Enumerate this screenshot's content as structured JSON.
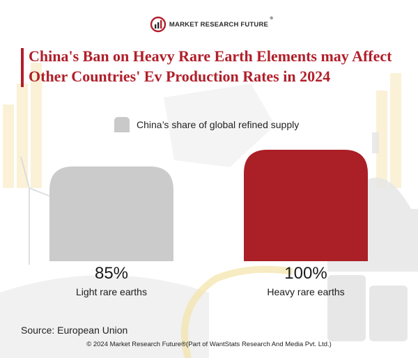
{
  "brand": {
    "name": "MARKET RESEARCH FUTURE",
    "reg_mark": "®",
    "accent_color": "#b11f2a"
  },
  "title": "China's Ban on Heavy Rare Earth Elements may Affect Other Countries' Ev Production Rates in 2024",
  "chart_data": {
    "type": "bar",
    "categories": [
      "Light rare earths",
      "Heavy rare earths"
    ],
    "series": [
      {
        "name": "China’s share of global refined supply",
        "values": [
          85,
          100
        ],
        "value_labels": [
          "85%",
          "100%"
        ],
        "colors": [
          "#cbcbcb",
          "#ab1f27"
        ]
      }
    ],
    "ylim": [
      0,
      100
    ],
    "grid": false,
    "legend": "top-center",
    "title": "",
    "xlabel": "",
    "ylabel": ""
  },
  "source": "Source: European Union",
  "footer": "© 2024 Market Research Future®(Part of WantStats Research And Media Pvt. Ltd.)"
}
